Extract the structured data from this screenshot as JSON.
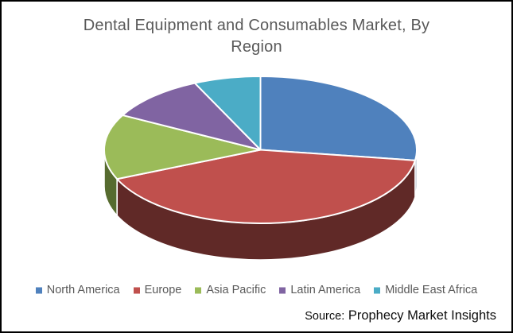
{
  "title": {
    "lines": [
      "Dental Equipment and Consumables Market, By",
      "Region"
    ]
  },
  "chart_data": {
    "type": "pie",
    "style": "3d",
    "title": "Dental Equipment and Consumables Market, By Region",
    "categories": [
      "North America",
      "Europe",
      "Asia Pacific",
      "Latin America",
      "Middle East Africa"
    ],
    "values": [
      27.3,
      41.2,
      14.3,
      10.3,
      6.9
    ],
    "values_note_units": "percent share, estimated from slice angles",
    "colors": [
      "#4F81BD",
      "#C0504D",
      "#9BBB59",
      "#8064A2",
      "#4BACC6"
    ],
    "side_colors": [
      "#2c4a6e",
      "#602927",
      "#566b2f",
      "#483859",
      "#2a6273"
    ],
    "start_angle_deg": 0,
    "direction": "clockwise",
    "legend_position": "bottom",
    "data_labels": "none"
  },
  "source": {
    "label": "Source:",
    "text": "Prophecy Market Insights"
  },
  "colors": {
    "background": "#ffffff",
    "border": "#000000",
    "title_text": "#595959",
    "legend_text": "#595959",
    "source_text": "#0d0d0d",
    "slice_outline": "#ffffff"
  }
}
